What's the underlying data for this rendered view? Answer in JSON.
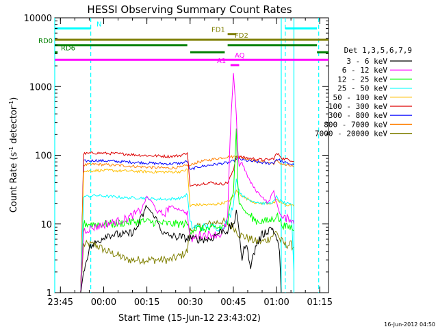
{
  "chart_data": {
    "type": "line",
    "title": "HESSI Observing Summary Count Rates",
    "xlabel": "Start Time (15-Jun-12 23:43:02)",
    "ylabel": "Count Rate (s",
    "ylabel_sup": "-1",
    "ylabel_tail": " detector",
    "ylabel_sup2": "-1",
    "ylabel_end": ")",
    "x_unit": "minutes since 23:43:02",
    "xlim": [
      0,
      95
    ],
    "ylim": [
      1,
      10000
    ],
    "yscale": "log",
    "x_ticks": [
      {
        "label": "23:45",
        "x": 1.97
      },
      {
        "label": "00:00",
        "x": 16.97
      },
      {
        "label": "00:15",
        "x": 31.97
      },
      {
        "label": "00:30",
        "x": 46.97
      },
      {
        "label": "00:45",
        "x": 61.97
      },
      {
        "label": "01:00",
        "x": 76.97
      },
      {
        "label": "01:15",
        "x": 91.97
      }
    ],
    "y_ticks": [
      {
        "label": "1",
        "v": 1
      },
      {
        "label": "10",
        "v": 10
      },
      {
        "label": "100",
        "v": 100
      },
      {
        "label": "1000",
        "v": 1000
      },
      {
        "label": "10000",
        "v": 10000
      }
    ],
    "legend_title": "Det 1,3,5,6,7,9",
    "legend_position": "right",
    "series": [
      {
        "name": "3 - 6 keV",
        "color": "#000000",
        "x": [
          9,
          10,
          12,
          16,
          18,
          20,
          25,
          28,
          30,
          32,
          35,
          38,
          42,
          44,
          46,
          47,
          48,
          50,
          54,
          56,
          58,
          60,
          62,
          63,
          64,
          65,
          66,
          67,
          68,
          70,
          72,
          74,
          75,
          76,
          77,
          78,
          78.6
        ],
        "y": [
          1,
          2,
          4.5,
          6,
          7,
          7,
          7,
          8,
          12,
          18,
          12,
          7,
          6.5,
          6.5,
          6,
          6.5,
          6,
          6,
          6,
          7,
          8,
          8,
          10,
          14,
          8,
          3,
          5,
          4,
          2.5,
          5,
          7,
          8,
          9,
          8,
          6,
          4,
          1
        ]
      },
      {
        "name": "6 - 12 keV",
        "color": "#ff00ff",
        "x": [
          9,
          10,
          14,
          18,
          22,
          25,
          28,
          30,
          32,
          34,
          36,
          38,
          40,
          44,
          46,
          47,
          48,
          50,
          54,
          56,
          58,
          59,
          60,
          61,
          62,
          63,
          63.5,
          64,
          65,
          66,
          68,
          70,
          72,
          74,
          75,
          76,
          77,
          78,
          79,
          82,
          83
        ],
        "y": [
          1,
          8,
          9,
          10,
          11,
          12,
          14,
          16,
          25,
          20,
          14,
          14,
          18,
          16,
          14,
          6,
          6,
          7,
          7,
          7,
          7,
          9,
          12,
          250,
          1500,
          400,
          120,
          70,
          80,
          60,
          40,
          30,
          25,
          20,
          25,
          30,
          20,
          15,
          12,
          12,
          10
        ]
      },
      {
        "name": "12 - 25 keV",
        "color": "#00ff00",
        "x": [
          9,
          10,
          14,
          20,
          25,
          30,
          35,
          40,
          46,
          47,
          48,
          50,
          54,
          58,
          60,
          61,
          62,
          63,
          63.5,
          64,
          65,
          66,
          68,
          70,
          72,
          74,
          76,
          77,
          78,
          79,
          80,
          82,
          83
        ],
        "y": [
          1,
          10,
          10,
          10,
          10.5,
          11,
          10.5,
          10,
          10,
          8,
          8.5,
          8.5,
          8.5,
          9,
          10,
          20,
          30,
          250,
          40,
          20,
          18,
          15,
          13,
          11,
          11,
          11,
          12,
          14,
          11,
          10,
          9,
          9,
          8
        ]
      },
      {
        "name": "25 - 50 keV",
        "color": "#00ffff",
        "x": [
          9,
          10,
          14,
          20,
          25,
          30,
          35,
          40,
          44,
          46,
          47,
          48,
          50,
          54,
          58,
          60,
          61,
          62,
          63,
          64,
          66,
          68,
          70,
          72,
          74,
          76,
          77,
          78,
          79,
          80,
          82,
          83
        ],
        "y": [
          1,
          25,
          26,
          25,
          24,
          24,
          23,
          23,
          24,
          27,
          10,
          9,
          9,
          9,
          9,
          11,
          14,
          20,
          45,
          30,
          24,
          22,
          21,
          20,
          20,
          21,
          25,
          22,
          21,
          20,
          19,
          2
        ]
      },
      {
        "name": "50 - 100 keV",
        "color": "#ffbf00",
        "x": [
          9,
          10,
          14,
          20,
          25,
          30,
          35,
          40,
          44,
          46,
          47,
          48,
          50,
          54,
          58,
          60,
          62,
          63,
          64,
          66,
          68,
          70,
          72,
          74,
          76,
          77,
          78,
          79,
          80,
          82,
          83
        ],
        "y": [
          1,
          58,
          60,
          60,
          59,
          58,
          57,
          57,
          58,
          62,
          18,
          19,
          19,
          19,
          20,
          21,
          25,
          30,
          28,
          24,
          22,
          20,
          20,
          20,
          20,
          22,
          21,
          20,
          19,
          19,
          18
        ]
      },
      {
        "name": "100 - 300 keV",
        "color": "#dd0000",
        "x": [
          9,
          10,
          14,
          20,
          25,
          30,
          35,
          40,
          44,
          46,
          47,
          48,
          50,
          54,
          58,
          60,
          62,
          63,
          64,
          66,
          68,
          70,
          72,
          74,
          76,
          77,
          78,
          79,
          80,
          82,
          83
        ],
        "y": [
          1,
          105,
          108,
          106,
          104,
          100,
          98,
          96,
          100,
          110,
          35,
          36,
          38,
          40,
          38,
          40,
          60,
          100,
          95,
          92,
          90,
          88,
          86,
          86,
          90,
          105,
          100,
          90,
          88,
          85,
          82
        ]
      },
      {
        "name": "300 - 800 keV",
        "color": "#0000ff",
        "x": [
          9,
          10,
          14,
          20,
          25,
          30,
          35,
          40,
          44,
          46,
          47,
          48,
          50,
          54,
          58,
          60,
          62,
          63,
          64,
          66,
          68,
          70,
          72,
          74,
          76,
          77,
          78,
          79,
          80,
          82,
          83
        ],
        "y": [
          1,
          82,
          84,
          82,
          80,
          78,
          76,
          75,
          77,
          82,
          60,
          64,
          68,
          72,
          76,
          78,
          82,
          90,
          88,
          84,
          82,
          80,
          78,
          76,
          78,
          88,
          85,
          80,
          78,
          75,
          72
        ]
      },
      {
        "name": "800 - 7000 keV",
        "color": "#ff7f00",
        "x": [
          9,
          10,
          14,
          20,
          25,
          30,
          35,
          40,
          44,
          46,
          47,
          48,
          50,
          54,
          58,
          60,
          62,
          63,
          64,
          66,
          68,
          70,
          72,
          74,
          76,
          77,
          78,
          79,
          80,
          82,
          83
        ],
        "y": [
          1,
          72,
          74,
          72,
          70,
          68,
          66,
          65,
          67,
          72,
          70,
          75,
          80,
          86,
          92,
          95,
          95,
          98,
          95,
          90,
          86,
          82,
          80,
          78,
          76,
          82,
          78,
          74,
          72,
          70,
          68
        ]
      },
      {
        "name": "7000 - 20000 keV",
        "color": "#7f7f00",
        "x": [
          9,
          10,
          14,
          18,
          22,
          25,
          28,
          32,
          36,
          40,
          44,
          46,
          47,
          48,
          50,
          54,
          58,
          60,
          62,
          63,
          64,
          66,
          68,
          70,
          72,
          74,
          76,
          77,
          78,
          79,
          80,
          82,
          83
        ],
        "y": [
          1,
          5,
          5,
          4,
          3.5,
          3,
          3,
          3,
          3,
          3,
          3.5,
          4,
          8,
          8.5,
          9,
          10,
          11,
          10,
          9,
          8,
          7,
          6.5,
          6,
          5.5,
          5.5,
          6,
          7,
          8,
          6,
          5.5,
          5,
          5,
          4.5
        ]
      }
    ],
    "flags": [
      {
        "name": "N",
        "color": "#00ffff",
        "y": 7000,
        "segments": [
          [
            0,
            12.5
          ],
          [
            80,
            91
          ]
        ]
      },
      {
        "name": "FD1",
        "color": "#7f7f00",
        "y": 5800,
        "segments": [
          [
            60,
            63
          ]
        ]
      },
      {
        "name": "FD2",
        "color": "#7f7f00",
        "y": 4800,
        "segments": [
          [
            0,
            95
          ]
        ]
      },
      {
        "name": "RD0",
        "color": "#007f00",
        "y": 4000,
        "segments": [
          [
            0,
            46
          ],
          [
            60,
            91
          ]
        ]
      },
      {
        "name": "RD6",
        "color": "#007f00",
        "y": 3150,
        "segments": [
          [
            0,
            1
          ],
          [
            47,
            59
          ],
          [
            91,
            95
          ]
        ]
      },
      {
        "name": "AQ",
        "color": "#ff00ff",
        "y": 2450,
        "segments": [
          [
            0,
            95
          ]
        ]
      },
      {
        "name": "A1",
        "color": "#ff00ff",
        "y": 2050,
        "segments": [
          [
            61,
            64
          ]
        ]
      }
    ],
    "vlines_cyan": [
      {
        "x": 0,
        "style": "solid"
      },
      {
        "x": 12.5,
        "style": "dashed"
      },
      {
        "x": 78.6,
        "style": "solid"
      },
      {
        "x": 80,
        "style": "dashed"
      },
      {
        "x": 91.6,
        "style": "dashed"
      },
      {
        "x": 83,
        "style": "solid"
      }
    ]
  },
  "footer": {
    "date_stamp": "16-Jun-2012 04:50"
  }
}
